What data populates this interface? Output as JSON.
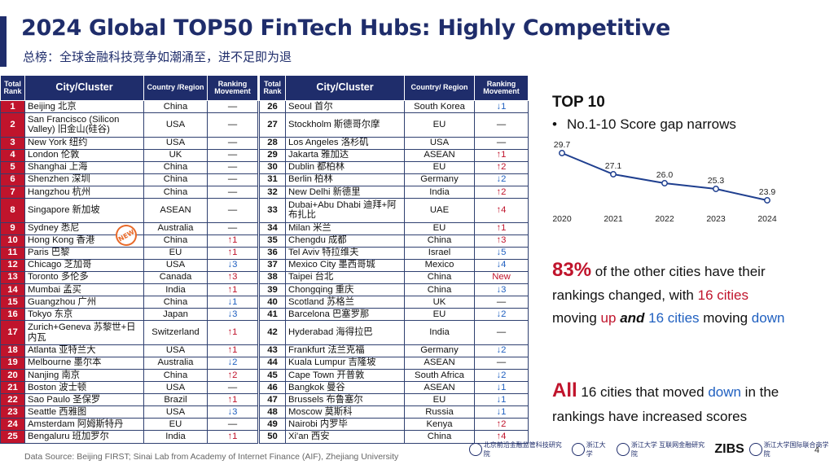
{
  "title": "2024 Global TOP50 FinTech Hubs: Highly Competitive",
  "subtitle": "总榜：全球金融科技竞争如潮涌至，进不足即为退",
  "table_headers": {
    "rank": "Total Rank",
    "city": "City/Cluster",
    "region_left": "Country /Region",
    "region_right": "Country/ Region",
    "movement": "Ranking Movement"
  },
  "left_rows": [
    {
      "rank": "1",
      "city": "Beijing  北京",
      "region": "China",
      "move": "—",
      "dir": "flat"
    },
    {
      "rank": "2",
      "city": "San Francisco (Silicon Valley)  旧金山(硅谷)",
      "region": "USA",
      "move": "—",
      "dir": "flat",
      "tall": true
    },
    {
      "rank": "3",
      "city": "New York  纽约",
      "region": "USA",
      "move": "—",
      "dir": "flat"
    },
    {
      "rank": "4",
      "city": "London  伦敦",
      "region": "UK",
      "move": "—",
      "dir": "flat"
    },
    {
      "rank": "5",
      "city": "Shanghai  上海",
      "region": "China",
      "move": "—",
      "dir": "flat"
    },
    {
      "rank": "6",
      "city": "Shenzhen  深圳",
      "region": "China",
      "move": "—",
      "dir": "flat"
    },
    {
      "rank": "7",
      "city": "Hangzhou  杭州",
      "region": "China",
      "move": "—",
      "dir": "flat"
    },
    {
      "rank": "8",
      "city": "Singapore  新加坡",
      "region": "ASEAN",
      "move": "—",
      "dir": "flat",
      "tall": true
    },
    {
      "rank": "9",
      "city": "Sydney  悉尼",
      "region": "Australia",
      "move": "—",
      "dir": "flat"
    },
    {
      "rank": "10",
      "city": "Hong Kong  香港",
      "region": "China",
      "move": "↑1",
      "dir": "up"
    },
    {
      "rank": "11",
      "city": "Paris  巴黎",
      "region": "EU",
      "move": "↑1",
      "dir": "up"
    },
    {
      "rank": "12",
      "city": "Chicago  芝加哥",
      "region": "USA",
      "move": "↓3",
      "dir": "down"
    },
    {
      "rank": "13",
      "city": "Toronto  多伦多",
      "region": "Canada",
      "move": "↑3",
      "dir": "up"
    },
    {
      "rank": "14",
      "city": "Mumbai  孟买",
      "region": "India",
      "move": "↑1",
      "dir": "up"
    },
    {
      "rank": "15",
      "city": "Guangzhou  广州",
      "region": "China",
      "move": "↓1",
      "dir": "down"
    },
    {
      "rank": "16",
      "city": "Tokyo  东京",
      "region": "Japan",
      "move": "↓3",
      "dir": "down"
    },
    {
      "rank": "17",
      "city": "Zurich+Geneva 苏黎世+日内瓦",
      "region": "Switzerland",
      "move": "↑1",
      "dir": "up",
      "tall": true
    },
    {
      "rank": "18",
      "city": "Atlanta  亚特兰大",
      "region": "USA",
      "move": "↑1",
      "dir": "up"
    },
    {
      "rank": "19",
      "city": "Melbourne  墨尔本",
      "region": "Australia",
      "move": "↓2",
      "dir": "down"
    },
    {
      "rank": "20",
      "city": "Nanjing  南京",
      "region": "China",
      "move": "↑2",
      "dir": "up"
    },
    {
      "rank": "21",
      "city": "Boston  波士顿",
      "region": "USA",
      "move": "—",
      "dir": "flat"
    },
    {
      "rank": "22",
      "city": "Sao Paulo  圣保罗",
      "region": "Brazil",
      "move": "↑1",
      "dir": "up"
    },
    {
      "rank": "23",
      "city": "Seattle  西雅图",
      "region": "USA",
      "move": "↓3",
      "dir": "down"
    },
    {
      "rank": "24",
      "city": "Amsterdam  阿姆斯特丹",
      "region": "EU",
      "move": "—",
      "dir": "flat"
    },
    {
      "rank": "25",
      "city": "Bengaluru  班加罗尔",
      "region": "India",
      "move": "↑1",
      "dir": "up"
    }
  ],
  "right_rows": [
    {
      "rank": "26",
      "city": "Seoul  首尔",
      "region": "South Korea",
      "move": "↓1",
      "dir": "down"
    },
    {
      "rank": "27",
      "city": "Stockholm  斯德哥尔摩",
      "region": "EU",
      "move": "—",
      "dir": "flat",
      "tall": true
    },
    {
      "rank": "28",
      "city": "Los Angeles  洛杉矶",
      "region": "USA",
      "move": "—",
      "dir": "flat"
    },
    {
      "rank": "29",
      "city": "Jakarta  雅加达",
      "region": "ASEAN",
      "move": "↑1",
      "dir": "up"
    },
    {
      "rank": "30",
      "city": "Dublin  都柏林",
      "region": "EU",
      "move": "↑2",
      "dir": "up"
    },
    {
      "rank": "31",
      "city": "Berlin  柏林",
      "region": "Germany",
      "move": "↓2",
      "dir": "down"
    },
    {
      "rank": "32",
      "city": "New Delhi  新德里",
      "region": "India",
      "move": "↑2",
      "dir": "up"
    },
    {
      "rank": "33",
      "city": "Dubai+Abu Dhabi 迪拜+阿布扎比",
      "region": "UAE",
      "move": "↑4",
      "dir": "up",
      "tall": true
    },
    {
      "rank": "34",
      "city": "Milan  米兰",
      "region": "EU",
      "move": "↑1",
      "dir": "up"
    },
    {
      "rank": "35",
      "city": "Chengdu  成都",
      "region": "China",
      "move": "↑3",
      "dir": "up"
    },
    {
      "rank": "36",
      "city": "Tel Aviv  特拉维夫",
      "region": "Israel",
      "move": "↓5",
      "dir": "down"
    },
    {
      "rank": "37",
      "city": "Mexico City  墨西哥城",
      "region": "Mexico",
      "move": "↓4",
      "dir": "down"
    },
    {
      "rank": "38",
      "city": "Taipei  台北",
      "region": "China",
      "move": "New",
      "dir": "new"
    },
    {
      "rank": "39",
      "city": "Chongqing  重庆",
      "region": "China",
      "move": "↓3",
      "dir": "down"
    },
    {
      "rank": "40",
      "city": "Scotland  苏格兰",
      "region": "UK",
      "move": "—",
      "dir": "flat"
    },
    {
      "rank": "41",
      "city": "Barcelona  巴塞罗那",
      "region": "EU",
      "move": "↓2",
      "dir": "down"
    },
    {
      "rank": "42",
      "city": "Hyderabad  海得拉巴",
      "region": "India",
      "move": "—",
      "dir": "flat",
      "tall": true
    },
    {
      "rank": "43",
      "city": "Frankfurt  法兰克福",
      "region": "Germany",
      "move": "↓2",
      "dir": "down"
    },
    {
      "rank": "44",
      "city": "Kuala Lumpur  吉隆坡",
      "region": "ASEAN",
      "move": "—",
      "dir": "flat"
    },
    {
      "rank": "45",
      "city": "Cape Town  开普敦",
      "region": "South Africa",
      "move": "↓2",
      "dir": "down"
    },
    {
      "rank": "46",
      "city": "Bangkok  曼谷",
      "region": "ASEAN",
      "move": "↓1",
      "dir": "down"
    },
    {
      "rank": "47",
      "city": "Brussels  布鲁塞尔",
      "region": "EU",
      "move": "↓1",
      "dir": "down"
    },
    {
      "rank": "48",
      "city": "Moscow  莫斯科",
      "region": "Russia",
      "move": "↓1",
      "dir": "down"
    },
    {
      "rank": "49",
      "city": "Nairobi  内罗毕",
      "region": "Kenya",
      "move": "↑2",
      "dir": "up"
    },
    {
      "rank": "50",
      "city": "Xi'an  西安",
      "region": "China",
      "move": "↑4",
      "dir": "up"
    }
  ],
  "new_stamp": "NEW",
  "top10": {
    "heading": "TOP 10",
    "bullet": "No.1-10 Score gap narrows"
  },
  "chart_data": {
    "type": "line",
    "x": [
      "2020",
      "2021",
      "2022",
      "2023",
      "2024"
    ],
    "series": [
      {
        "values": [
          29.7,
          27.1,
          26.0,
          25.3,
          23.9
        ]
      }
    ],
    "data_labels": [
      "29.7",
      "27.1",
      "26.0",
      "25.3",
      "23.9"
    ],
    "color": "#1f3f8f",
    "title": "",
    "xlabel": "",
    "ylabel": ""
  },
  "stat1": {
    "big": "83%",
    "t1": " of the other cities have their rankings changed, with ",
    "up_count": "16 cities",
    "t2": " moving ",
    "up_word": "up",
    "and_word": "and",
    "down_count": "16 cities",
    "t3": " moving ",
    "down_word": "down"
  },
  "stat2": {
    "big": "All",
    "t1": " 16 cities that moved ",
    "down_word": "down",
    "t2": " in the rankings have increased scores"
  },
  "source": "Data Source: Beijing FIRST; Sinai Lab from Academy of Internet Finance (AIF), Zhejiang University",
  "logos": [
    "北京前沿金融监管科技研究院",
    "浙江大学",
    "浙江大学 互联网金融研究院",
    "ZIBS",
    "浙江大学国际联合商学院"
  ],
  "page_number": "4"
}
